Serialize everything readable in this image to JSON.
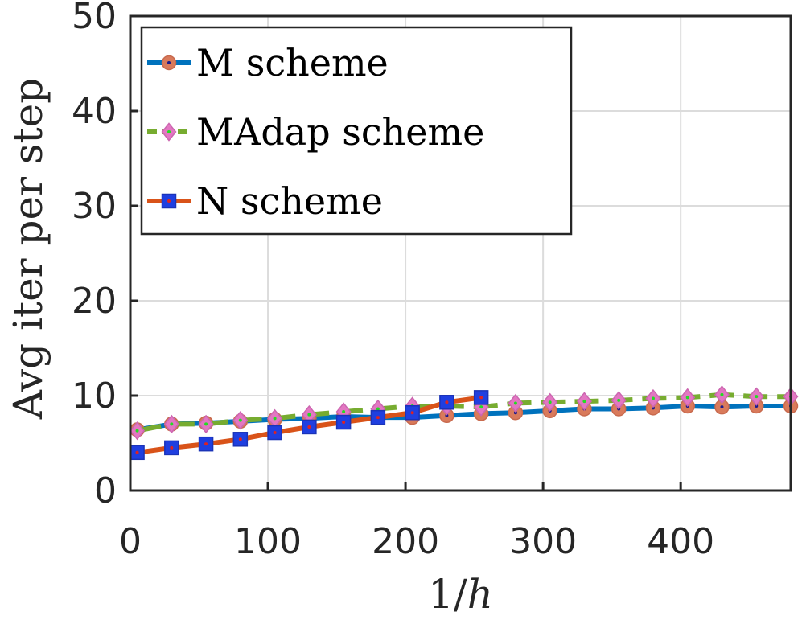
{
  "chart_data": {
    "type": "line",
    "title": "",
    "xlabel": "1/h",
    "ylabel": "Avg iter per step",
    "xlim": [
      0,
      480
    ],
    "ylim": [
      0,
      50
    ],
    "xticks": [
      0,
      100,
      200,
      300,
      400
    ],
    "yticks": [
      0,
      10,
      20,
      30,
      40,
      50
    ],
    "grid": true,
    "legend_position": "top-left",
    "series": [
      {
        "name": "M scheme",
        "color": "#0072BD",
        "marker": "circle",
        "marker_face": "#D97A5B",
        "marker_dot": "#1a1a8c",
        "line_style": "solid",
        "x": [
          5,
          30,
          55,
          80,
          105,
          130,
          155,
          180,
          205,
          230,
          255,
          280,
          305,
          330,
          355,
          380,
          405,
          430,
          455,
          480
        ],
        "values": [
          6.4,
          7.0,
          7.1,
          7.3,
          7.5,
          7.6,
          7.8,
          7.7,
          7.7,
          7.9,
          8.1,
          8.2,
          8.4,
          8.6,
          8.6,
          8.7,
          8.9,
          8.8,
          8.9,
          8.9
        ]
      },
      {
        "name": "MAdap scheme",
        "color": "#77AC30",
        "marker": "diamond",
        "marker_face": "#E377C2",
        "marker_dot": "#22dd22",
        "line_style": "dashed",
        "x": [
          5,
          30,
          55,
          80,
          105,
          130,
          155,
          180,
          205,
          230,
          255,
          280,
          305,
          330,
          355,
          380,
          405,
          430,
          455,
          480
        ],
        "values": [
          6.3,
          7.0,
          7.0,
          7.4,
          7.6,
          8.0,
          8.3,
          8.6,
          8.9,
          8.9,
          8.8,
          9.2,
          9.3,
          9.4,
          9.5,
          9.7,
          9.8,
          10.1,
          9.9,
          9.9
        ]
      },
      {
        "name": "N scheme",
        "color": "#D95319",
        "marker": "square",
        "marker_face": "#1F3FE0",
        "marker_dot": "#dd2222",
        "line_style": "solid",
        "x": [
          5,
          30,
          55,
          80,
          105,
          130,
          155,
          180,
          205,
          230,
          255
        ],
        "values": [
          4.0,
          4.5,
          4.9,
          5.4,
          6.1,
          6.7,
          7.2,
          7.7,
          8.2,
          9.3,
          9.8
        ]
      }
    ]
  }
}
